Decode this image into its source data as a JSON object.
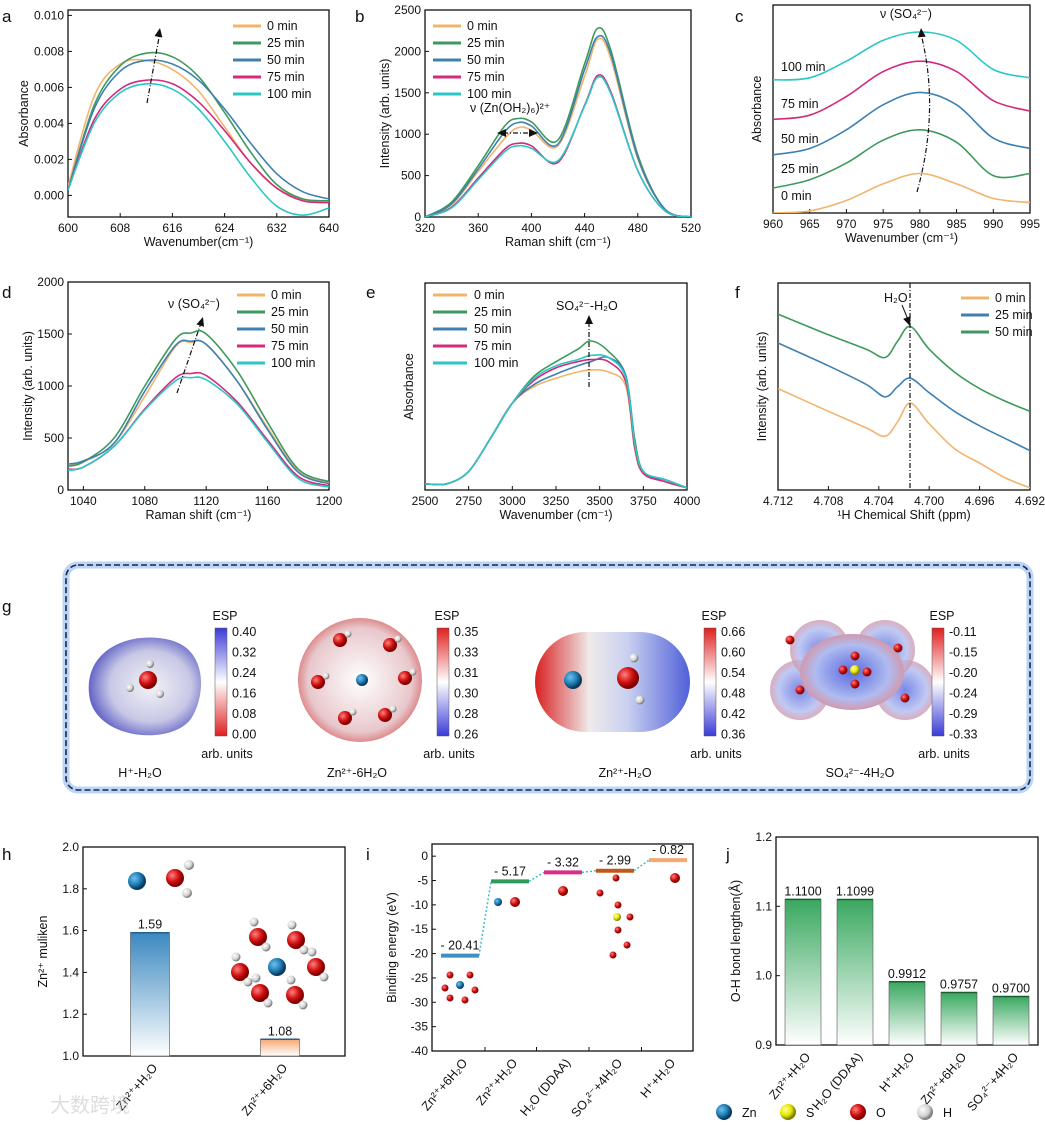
{
  "colors": {
    "t0": "#f2b46c",
    "t25": "#3d9a5c",
    "t50": "#3f80b2",
    "t75": "#d42a7c",
    "t100": "#2cc6c6",
    "zn": "#1f7fb5",
    "s": "#e8e800",
    "o": "#d01010",
    "h": "#e6e6e6",
    "green_bar": "#3aa860",
    "blue_bar": "#3b88c0",
    "orange_bar": "#f5a870"
  },
  "panel_letters": [
    "a",
    "b",
    "c",
    "d",
    "e",
    "f",
    "g",
    "h",
    "i",
    "j"
  ],
  "chart_data": [
    {
      "id": "a",
      "type": "line",
      "xlabel": "Wavenumber(cm⁻¹)",
      "ylabel": "Absorbance",
      "xlim": [
        600,
        640
      ],
      "ylim": [
        -0.0012,
        0.0103
      ],
      "xticks": [
        "600",
        "608",
        "616",
        "624",
        "632",
        "640"
      ],
      "yticks": [
        "0.000",
        "0.002",
        "0.004",
        "0.006",
        "0.008",
        "0.010"
      ],
      "legend": "top-right",
      "annotation": "",
      "x": [
        600,
        604,
        608,
        612,
        616,
        620,
        624,
        628,
        632,
        636,
        640
      ],
      "series": [
        {
          "name": "0 min",
          "color": "t0",
          "values": [
            0.0005,
            0.0055,
            0.0073,
            0.0075,
            0.007,
            0.0058,
            0.0038,
            0.0018,
            0.0004,
            -0.0002,
            -0.0003
          ]
        },
        {
          "name": "25 min",
          "color": "t25",
          "values": [
            0.0003,
            0.005,
            0.0072,
            0.0079,
            0.0077,
            0.0066,
            0.0046,
            0.0024,
            0.0006,
            -0.0002,
            -0.0003
          ]
        },
        {
          "name": "50 min",
          "color": "t50",
          "values": [
            0.0003,
            0.0048,
            0.0069,
            0.0075,
            0.0073,
            0.0064,
            0.0048,
            0.0029,
            0.0012,
            0.0002,
            -0.0002
          ]
        },
        {
          "name": "75 min",
          "color": "t75",
          "values": [
            0.0003,
            0.0042,
            0.0059,
            0.0064,
            0.0062,
            0.0052,
            0.0036,
            0.0018,
            0.0004,
            -0.0003,
            -0.0004
          ]
        },
        {
          "name": "100 min",
          "color": "t100",
          "values": [
            0.0003,
            0.004,
            0.0057,
            0.0062,
            0.0059,
            0.0048,
            0.003,
            0.001,
            -0.0006,
            -0.0011,
            -0.0007
          ]
        }
      ]
    },
    {
      "id": "b",
      "type": "line",
      "xlabel": "Raman  shift (cm⁻¹)",
      "ylabel": "Intensity (arb. units)",
      "xlim": [
        320,
        520
      ],
      "ylim": [
        0,
        2500
      ],
      "xticks": [
        "320",
        "360",
        "400",
        "440",
        "480",
        "520"
      ],
      "yticks": [
        "0",
        "500",
        "1000",
        "1500",
        "2000",
        "2500"
      ],
      "legend": "top-left",
      "annotation": "ν (Zn(OH₂)₆)²⁺",
      "x": [
        320,
        340,
        360,
        380,
        390,
        400,
        420,
        440,
        450,
        460,
        480,
        500,
        520
      ],
      "series": [
        {
          "name": "0 min",
          "color": "t0",
          "values": [
            0,
            150,
            550,
            950,
            1080,
            1050,
            860,
            1700,
            2150,
            1900,
            700,
            100,
            0
          ]
        },
        {
          "name": "25 min",
          "color": "t25",
          "values": [
            0,
            180,
            620,
            1100,
            1190,
            1150,
            930,
            1850,
            2280,
            2000,
            750,
            100,
            0
          ]
        },
        {
          "name": "50 min",
          "color": "t50",
          "values": [
            0,
            160,
            580,
            1030,
            1140,
            1100,
            880,
            1780,
            2180,
            1950,
            720,
            100,
            0
          ]
        },
        {
          "name": "75 min",
          "color": "t75",
          "values": [
            0,
            120,
            470,
            820,
            890,
            860,
            660,
            1350,
            1710,
            1500,
            560,
            80,
            0
          ]
        },
        {
          "name": "100 min",
          "color": "t100",
          "values": [
            0,
            110,
            450,
            790,
            860,
            830,
            680,
            1340,
            1690,
            1480,
            560,
            80,
            0
          ]
        }
      ]
    },
    {
      "id": "c",
      "type": "line",
      "xlabel": "Wavenumber (cm⁻¹)",
      "ylabel": "Absorbance",
      "xlim": [
        960,
        995
      ],
      "ylim": [
        0,
        100
      ],
      "xticks": [
        "960",
        "965",
        "970",
        "975",
        "980",
        "985",
        "990",
        "995"
      ],
      "yticks": [],
      "legend": "inline-left",
      "annotation": "ν (SO₄²⁻)",
      "x": [
        960,
        965,
        970,
        975,
        980,
        985,
        990,
        995
      ],
      "series": [
        {
          "name": "0 min",
          "color": "t0",
          "values": [
            0,
            1,
            6,
            14,
            19,
            14,
            7,
            5
          ]
        },
        {
          "name": "25 min",
          "color": "t25",
          "values": [
            12,
            16,
            24,
            35,
            40,
            34,
            18,
            19
          ]
        },
        {
          "name": "50 min",
          "color": "t50",
          "values": [
            28,
            31,
            40,
            52,
            58,
            52,
            36,
            31
          ]
        },
        {
          "name": "75 min",
          "color": "t75",
          "values": [
            45,
            47,
            56,
            68,
            73,
            68,
            54,
            49
          ]
        },
        {
          "name": "100 min",
          "color": "t100",
          "values": [
            64,
            65,
            73,
            83,
            87,
            83,
            69,
            65
          ]
        }
      ]
    },
    {
      "id": "d",
      "type": "line",
      "xlabel": "Raman  shift (cm⁻¹)",
      "ylabel": "Intensity (arb. units)",
      "xlim": [
        1030,
        1200
      ],
      "ylim": [
        0,
        2000
      ],
      "xticks": [
        "1040",
        "1080",
        "1120",
        "1160",
        "1200"
      ],
      "yticks": [
        "0",
        "500",
        "1000",
        "1500",
        "2000"
      ],
      "legend": "top-right",
      "annotation": "ν (SO₄²⁻)",
      "x": [
        1030,
        1040,
        1060,
        1080,
        1100,
        1110,
        1120,
        1140,
        1160,
        1180,
        1200
      ],
      "series": [
        {
          "name": "0 min",
          "color": "t0",
          "values": [
            250,
            270,
            450,
            900,
            1380,
            1420,
            1400,
            1050,
            600,
            180,
            70
          ]
        },
        {
          "name": "25 min",
          "color": "t25",
          "values": [
            230,
            270,
            500,
            1000,
            1450,
            1510,
            1500,
            1150,
            650,
            200,
            80
          ]
        },
        {
          "name": "50 min",
          "color": "t50",
          "values": [
            250,
            280,
            450,
            950,
            1390,
            1430,
            1400,
            1050,
            580,
            170,
            60
          ]
        },
        {
          "name": "75 min",
          "color": "t75",
          "values": [
            200,
            220,
            420,
            780,
            1080,
            1120,
            1100,
            850,
            480,
            130,
            40
          ]
        },
        {
          "name": "100 min",
          "color": "t100",
          "values": [
            190,
            220,
            420,
            770,
            1050,
            1080,
            1060,
            830,
            460,
            110,
            30
          ]
        }
      ]
    },
    {
      "id": "e",
      "type": "line",
      "xlabel": "Wavenumber (cm⁻¹)",
      "ylabel": "Absorbance",
      "xlim": [
        2500,
        4000
      ],
      "ylim": [
        0,
        100
      ],
      "xticks": [
        "2500",
        "2750",
        "3000",
        "3250",
        "3500",
        "3750",
        "4000"
      ],
      "yticks": [],
      "legend": "top-left",
      "annotation": "SO₄²⁻-H₂O",
      "x": [
        2500,
        2625,
        2750,
        2875,
        3000,
        3125,
        3250,
        3375,
        3450,
        3550,
        3650,
        3700,
        3750,
        3875,
        4000
      ],
      "series": [
        {
          "name": "0  min",
          "color": "t0",
          "values": [
            3,
            3,
            9,
            25,
            42,
            50,
            54,
            57,
            58,
            57,
            50,
            20,
            8,
            4,
            1
          ]
        },
        {
          "name": "25  min",
          "color": "t25",
          "values": [
            3,
            3,
            9,
            25,
            42,
            55,
            62,
            68,
            72,
            67,
            55,
            25,
            9,
            5,
            1
          ]
        },
        {
          "name": "50  min",
          "color": "t50",
          "values": [
            3,
            3,
            9,
            25,
            42,
            51,
            56,
            60,
            62,
            64,
            55,
            22,
            8,
            5,
            1
          ]
        },
        {
          "name": "75  min",
          "color": "t75",
          "values": [
            3,
            3,
            9,
            25,
            42,
            53,
            59,
            62,
            63,
            62,
            52,
            21,
            8,
            4,
            1
          ]
        },
        {
          "name": "100 min",
          "color": "t100",
          "values": [
            3,
            3,
            9,
            25,
            42,
            54,
            60,
            63,
            65,
            64,
            54,
            23,
            9,
            5,
            1
          ]
        }
      ]
    },
    {
      "id": "f",
      "type": "line",
      "xlabel": "¹H Chemical Shift (ppm)",
      "ylabel": "Intensity (arb. units)",
      "xlim": [
        4.712,
        4.692
      ],
      "ylim": [
        0,
        100
      ],
      "xticks": [
        "4.712",
        "4.708",
        "4.704",
        "4.700",
        "4.696",
        "4.692"
      ],
      "yticks": [],
      "legend": "top-right",
      "annotation": "H₂O",
      "x": [
        4.712,
        4.708,
        4.705,
        4.7035,
        4.7025,
        4.7015,
        4.7,
        4.698,
        4.696,
        4.694,
        4.692
      ],
      "series": [
        {
          "name": "0 min",
          "color": "t0",
          "values": [
            49,
            38,
            30,
            26,
            33,
            42,
            32,
            20,
            13,
            6,
            1
          ]
        },
        {
          "name": "25 min",
          "color": "t50",
          "values": [
            71,
            60,
            51,
            45,
            50,
            54,
            47,
            38,
            31,
            25,
            19
          ]
        },
        {
          "name": "50 min",
          "color": "t25",
          "values": [
            85,
            75,
            68,
            64,
            72,
            79,
            68,
            57,
            49,
            43,
            38
          ]
        }
      ]
    },
    {
      "id": "h",
      "type": "bar",
      "ylabel": "Zn²⁺ muliken",
      "ylim": [
        1.0,
        2.0
      ],
      "yticks": [
        "1.0",
        "1.2",
        "1.4",
        "1.6",
        "1.8",
        "2.0"
      ],
      "categories": [
        "Zn²⁺+H₂O",
        "Zn²⁺+6H₂O"
      ],
      "values": [
        1.59,
        1.08
      ],
      "labels": [
        "1.59",
        "1.08"
      ],
      "colors": [
        "blue_bar",
        "orange_bar"
      ]
    },
    {
      "id": "i",
      "type": "bar",
      "ylabel": "Binding energy (eV)",
      "ylim": [
        -40,
        2.5
      ],
      "yticks": [
        "0",
        "-5",
        "-10",
        "-15",
        "-20",
        "-25",
        "-30",
        "-35",
        "-40"
      ],
      "categories": [
        "Zn²⁺+6H₂O",
        "Zn²⁺+H₂O",
        "H₂O (DDAA)",
        "SO₄²⁻+4H₂O",
        "H⁺+H₂O"
      ],
      "values": [
        -20.41,
        -5.17,
        -3.32,
        -2.99,
        -0.82
      ],
      "labels": [
        "- 20.41",
        "- 5.17",
        "- 3.32",
        "- 2.99",
        "- 0.82"
      ],
      "colors": [
        "#3f8fc0",
        "#2f9a5a",
        "#d8308a",
        "#c05818",
        "#f5a870"
      ]
    },
    {
      "id": "j",
      "type": "bar",
      "ylabel": "O-H bond lengthen(Å)",
      "ylim": [
        0.9,
        1.2
      ],
      "yticks": [
        "0.9",
        "1.0",
        "1.1",
        "1.2"
      ],
      "categories": [
        "Zn²⁺+H₂O",
        "H₂O (DDAA)",
        "H⁺+H₂O",
        "Zn²⁺+6H₂O",
        "SO₄²⁻+4H₂O"
      ],
      "values": [
        1.11,
        1.1099,
        0.9912,
        0.9757,
        0.97
      ],
      "labels": [
        "1.1100",
        "1.1099",
        "0.9912",
        "0.9757",
        "0.9700"
      ]
    }
  ],
  "esp": {
    "title": "ESP",
    "unit": "arb. units",
    "maps": [
      {
        "label": "H⁺-H₂O",
        "ticks": [
          "0.40",
          "0.32",
          "0.24",
          "0.16",
          "0.08",
          "0.00"
        ],
        "top": "blue"
      },
      {
        "label": "Zn²⁺-6H₂O",
        "ticks": [
          "0.35",
          "0.33",
          "0.31",
          "0.30",
          "0.28",
          "0.26"
        ],
        "top": "red"
      },
      {
        "label": "Zn²⁺-H₂O",
        "ticks": [
          "0.66",
          "0.60",
          "0.54",
          "0.48",
          "0.42",
          "0.36"
        ],
        "top": "red"
      },
      {
        "label": "SO₄²⁻-4H₂O",
        "ticks": [
          "-0.11",
          "-0.15",
          "-0.20",
          "-0.24",
          "-0.29",
          "-0.33"
        ],
        "top": "red"
      }
    ]
  },
  "atom_legend": [
    {
      "label": "Zn",
      "color": "zn"
    },
    {
      "label": "S",
      "color": "s"
    },
    {
      "label": "O",
      "color": "o"
    },
    {
      "label": "H",
      "color": "h"
    }
  ],
  "watermark": "大数跨境"
}
